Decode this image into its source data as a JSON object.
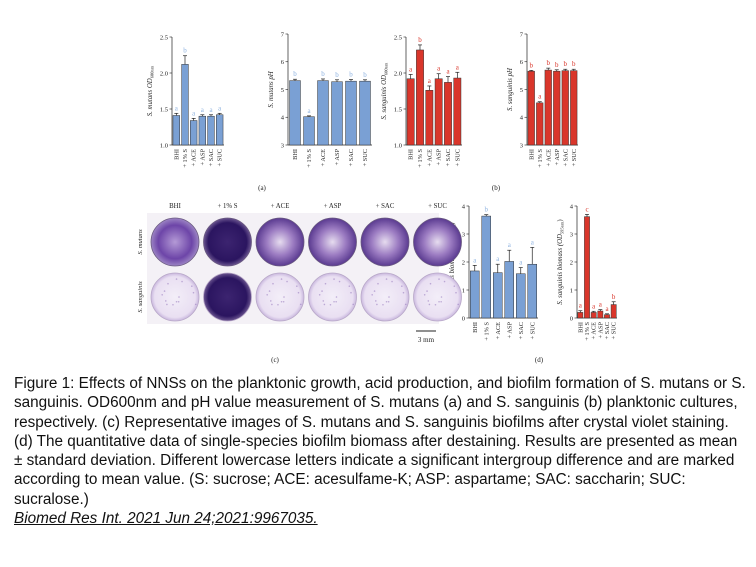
{
  "chart_data": [
    {
      "id": "a1",
      "type": "bar",
      "panel": "(a)",
      "ylabel": "S. mutans OD",
      "ylabel_sub": "600nm",
      "categories": [
        "BHI",
        "+ 1% S",
        "+ ACE",
        "+ ASP",
        "+ SAC",
        "+ SUC"
      ],
      "values": [
        1.41,
        2.12,
        1.34,
        1.4,
        1.4,
        1.42
      ],
      "errors": [
        0.03,
        0.12,
        0.03,
        0.02,
        0.02,
        0.02
      ],
      "letters": [
        "a",
        "b",
        "a",
        "a",
        "a",
        "a"
      ],
      "yticks": [
        "1.0",
        "1.5",
        "2.0",
        "2.5"
      ],
      "ylim": [
        1.0,
        2.5
      ],
      "color": "#7aa0d4"
    },
    {
      "id": "a2",
      "type": "bar",
      "ylabel": "S. mutans pH",
      "categories": [
        "BHI",
        "+ 1% S",
        "+ ACE",
        "+ ASP",
        "+ SAC",
        "+ SUC"
      ],
      "values": [
        5.32,
        4.02,
        5.32,
        5.28,
        5.3,
        5.3
      ],
      "errors": [
        0.05,
        0.03,
        0.06,
        0.07,
        0.06,
        0.05
      ],
      "letters": [
        "b",
        "a",
        "b",
        "b",
        "b",
        "b"
      ],
      "yticks": [
        "3",
        "4",
        "5",
        "6",
        "7"
      ],
      "ylim": [
        3,
        7
      ],
      "color": "#7aa0d4"
    },
    {
      "id": "b1",
      "type": "bar",
      "panel": "(b)",
      "ylabel": "S. sanguinis OD",
      "ylabel_sub": "600nm",
      "categories": [
        "BHI",
        "+ 1% S",
        "+ ACE",
        "+ ASP",
        "+ SAC",
        "+ SUC"
      ],
      "values": [
        1.92,
        2.32,
        1.76,
        1.92,
        1.87,
        1.93
      ],
      "errors": [
        0.06,
        0.07,
        0.06,
        0.07,
        0.08,
        0.08
      ],
      "letters": [
        "a",
        "b",
        "a",
        "a",
        "a",
        "a"
      ],
      "yticks": [
        "1.0",
        "1.5",
        "2.0",
        "2.5"
      ],
      "ylim": [
        1.0,
        2.5
      ],
      "color": "#d9362b"
    },
    {
      "id": "b2",
      "type": "bar",
      "ylabel": "S. sanguinis pH",
      "categories": [
        "BHI",
        "+ 1% S",
        "+ ACE",
        "+ ASP",
        "+ SAC",
        "+ SUC"
      ],
      "values": [
        5.66,
        4.52,
        5.7,
        5.66,
        5.68,
        5.68
      ],
      "errors": [
        0.03,
        0.04,
        0.07,
        0.05,
        0.05,
        0.05
      ],
      "letters": [
        "b",
        "a",
        "b",
        "b",
        "b",
        "b"
      ],
      "yticks": [
        "3",
        "4",
        "5",
        "6",
        "7"
      ],
      "ylim": [
        3,
        7
      ],
      "color": "#d9362b"
    },
    {
      "id": "d1",
      "type": "bar",
      "ylabel": "S. mutans biomass (OD",
      "ylabel_sub": "595nm",
      "ylabel_end": ")",
      "categories": [
        "BHI",
        "+ 1% S",
        "+ ACE",
        "+ ASP",
        "+ SAC",
        "+ SUC"
      ],
      "values": [
        1.68,
        3.64,
        1.62,
        2.02,
        1.58,
        1.92
      ],
      "errors": [
        0.2,
        0.05,
        0.3,
        0.4,
        0.22,
        0.6
      ],
      "letters": [
        "a",
        "b",
        "a",
        "a",
        "a",
        "a"
      ],
      "yticks": [
        "0",
        "1",
        "2",
        "3",
        "4"
      ],
      "ylim": [
        0,
        4
      ],
      "color": "#7aa0d4"
    },
    {
      "id": "d2",
      "type": "bar",
      "ylabel": "S. sanguinis biomass (OD",
      "ylabel_sub": "595nm",
      "ylabel_end": ")",
      "categories": [
        "BHI",
        "+ 1% S",
        "+ ACE",
        "+ ASP",
        "+ SAC",
        "+ SUC"
      ],
      "values": [
        0.2,
        3.62,
        0.2,
        0.25,
        0.12,
        0.48
      ],
      "errors": [
        0.06,
        0.08,
        0.04,
        0.05,
        0.03,
        0.1
      ],
      "letters": [
        "a",
        "c",
        "a",
        "a",
        "a",
        "b"
      ],
      "yticks": [
        "0",
        "1",
        "2",
        "3",
        "4"
      ],
      "ylim": [
        0,
        4
      ],
      "color": "#d9362b"
    }
  ],
  "labels": {
    "a": "(a)",
    "b": "(b)",
    "c": "(c)",
    "d": "(d)"
  },
  "photo": {
    "columns": [
      "BHI",
      "+ 1% S",
      "+ ACE",
      "+ ASP",
      "+ SAC",
      "+ SUC"
    ],
    "rows": [
      "S. mutans",
      "S. sanguinis"
    ],
    "scale": "3 mm"
  },
  "caption": {
    "text": "Figure 1: Effects of NNSs on the planktonic growth, acid production, and biofilm formation of S. mutans or S. sanguinis. OD600nm and pH value measurement of S. mutans (a) and S. sanguinis (b) planktonic cultures, respectively. (c) Representative images of S. mutans and S. sanguinis biofilms after crystal violet staining. (d) The quantitative data of single-species biofilm biomass after destaining. Results are presented as mean ± standard deviation. Different lowercase letters indicate a significant intergroup difference and are marked according to mean value. (S: sucrose; ACE: acesulfame-K; ASP: aspartame; SAC: saccharin; SUC: sucralose.)",
    "citation": "Biomed Res Int. 2021 Jun 24;2021:9967035."
  },
  "colors": {
    "blue": "#7aa0d4",
    "red": "#d9362b",
    "blue_letter": "#8fb3e0",
    "red_letter": "#d9362b"
  }
}
